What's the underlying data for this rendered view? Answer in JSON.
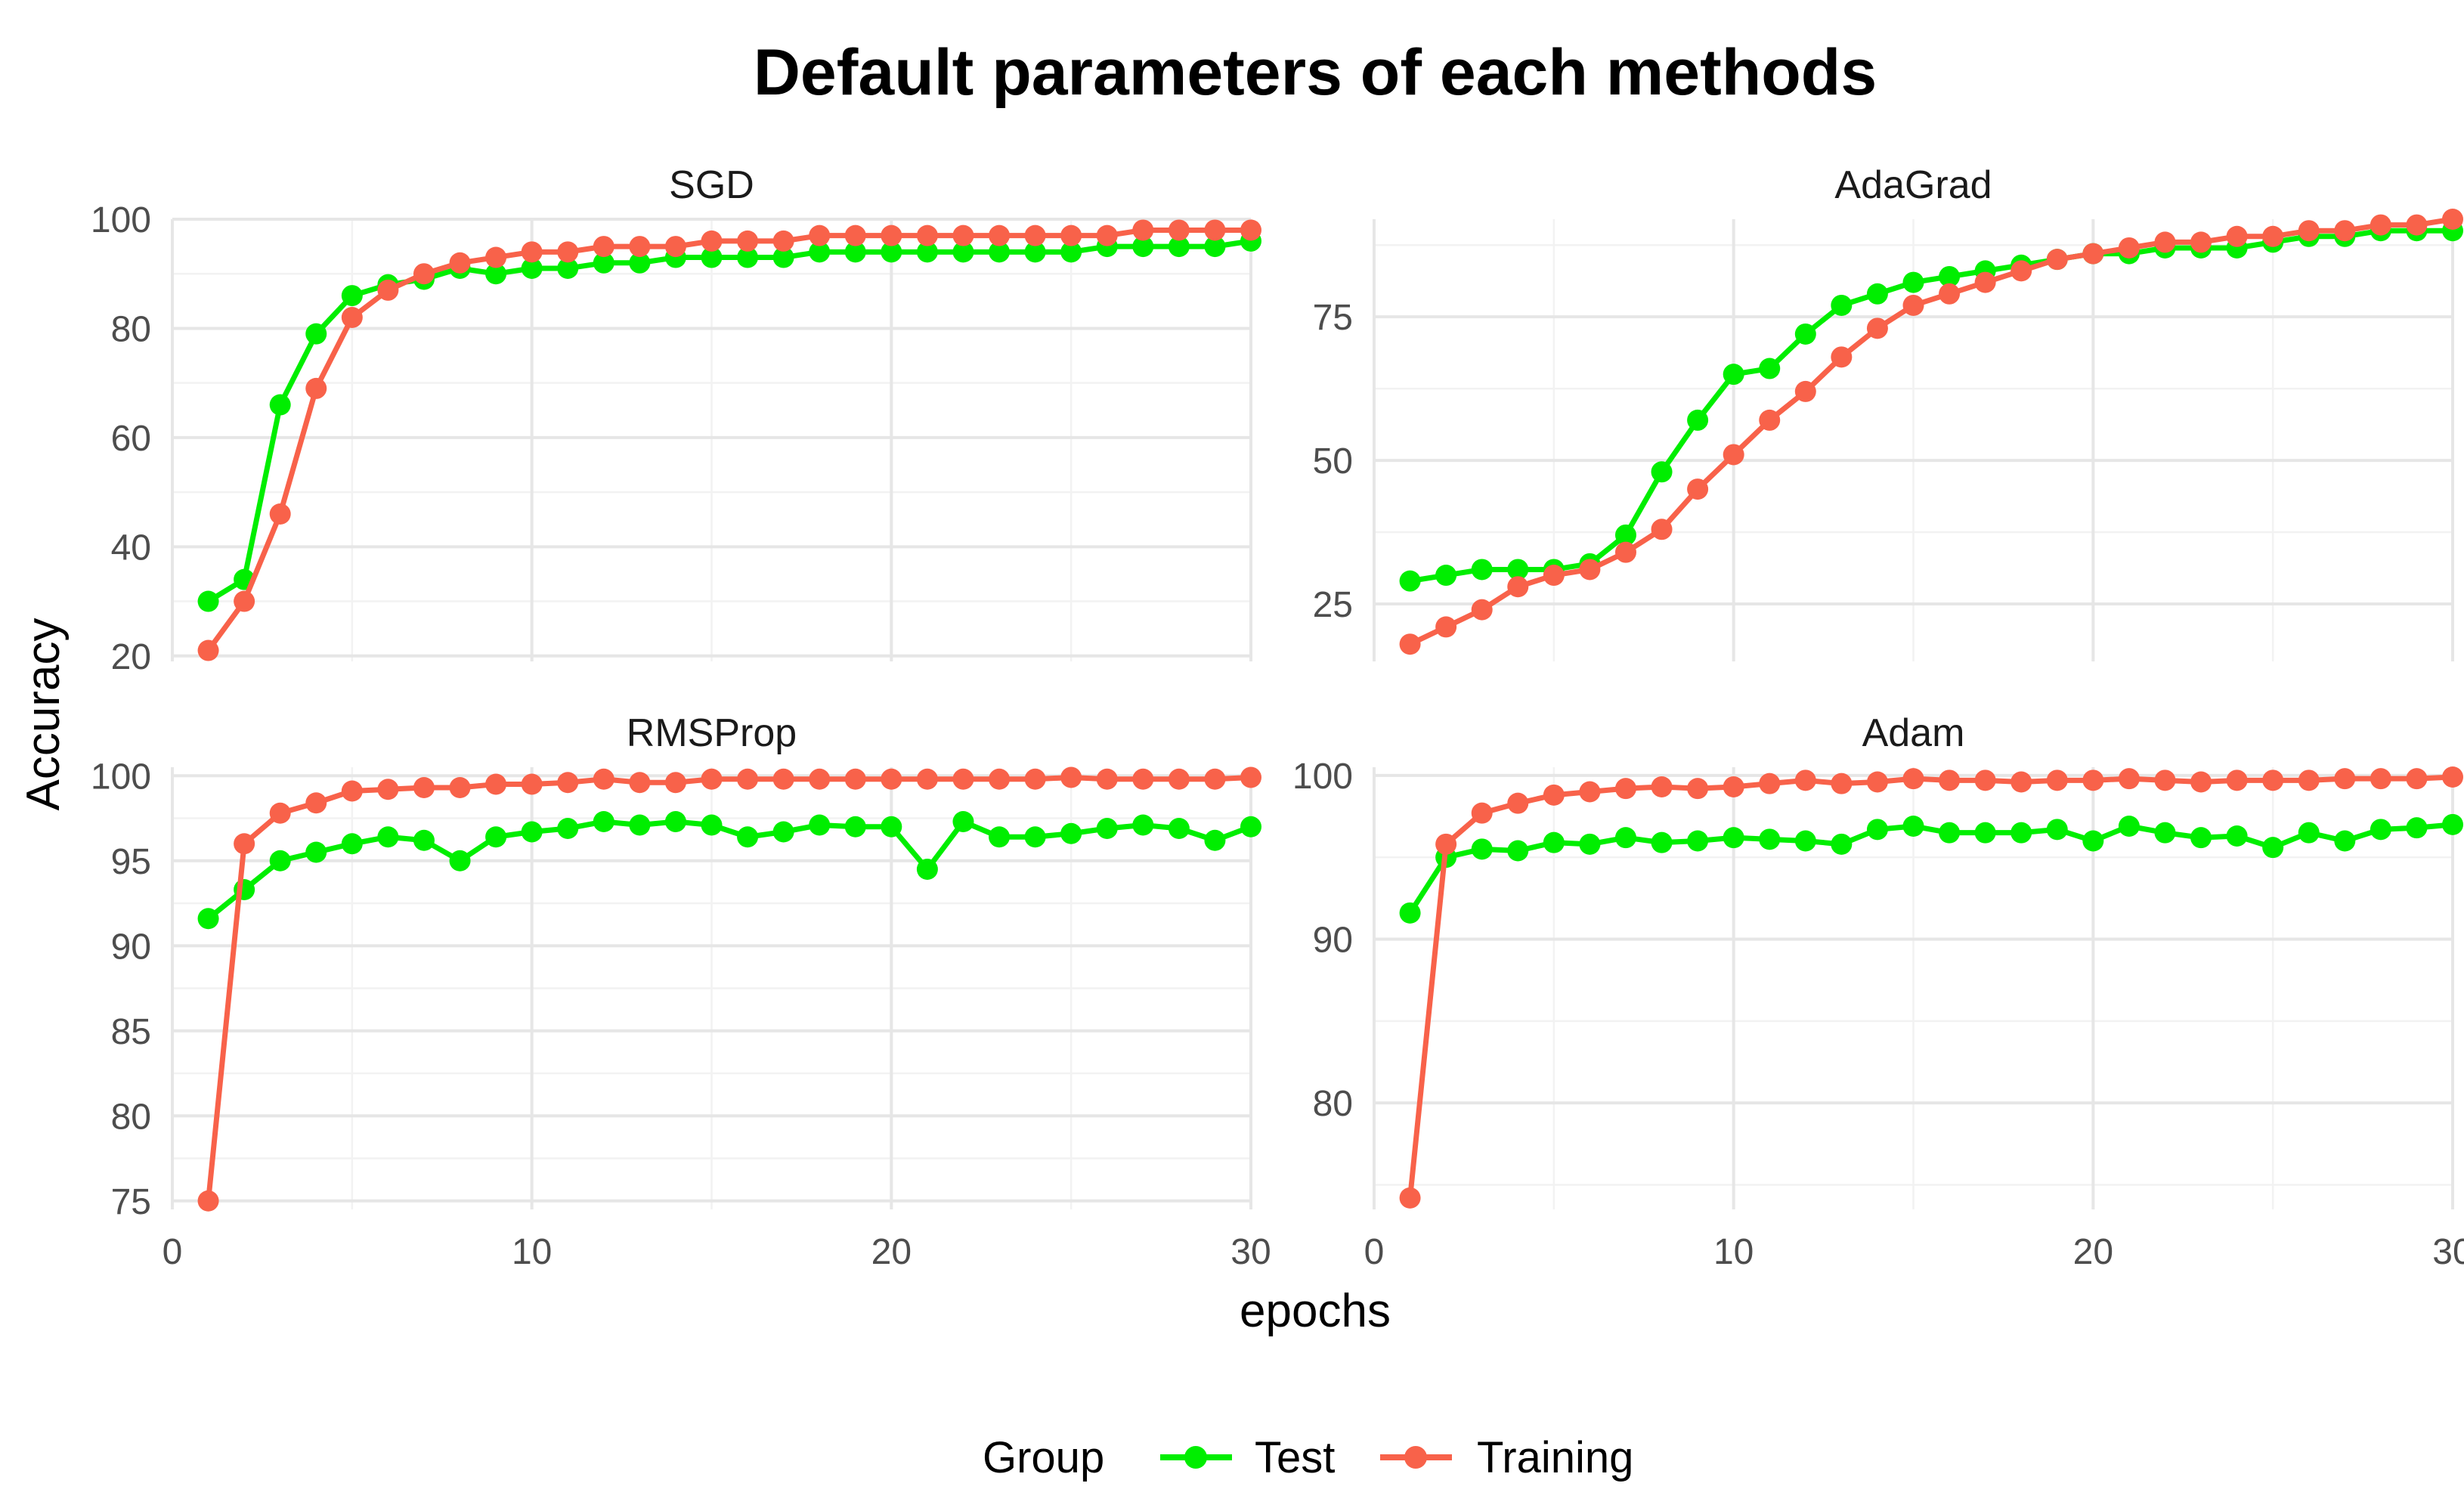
{
  "chart_data": {
    "type": "line",
    "title": "Default parameters of each methods",
    "xlabel": "epochs",
    "ylabel": "Accuracy",
    "legend": {
      "title": "Group",
      "position": "bottom"
    },
    "colors": {
      "Test": "#00ee00",
      "Training": "#f8624a"
    },
    "x": [
      1,
      2,
      3,
      4,
      5,
      6,
      7,
      8,
      9,
      10,
      11,
      12,
      13,
      14,
      15,
      16,
      17,
      18,
      19,
      20,
      21,
      22,
      23,
      24,
      25,
      26,
      27,
      28,
      29,
      30
    ],
    "xlim": [
      0,
      30
    ],
    "xticks": [
      0,
      10,
      20,
      30
    ],
    "grid": true,
    "panels": [
      {
        "label": "SGD",
        "ylim": [
          19,
          100
        ],
        "yticks": [
          20,
          40,
          60,
          80,
          100
        ],
        "series": [
          {
            "name": "Test",
            "values": [
              30,
              34,
              66,
              79,
              86,
              88,
              89,
              91,
              90,
              91,
              91,
              92,
              92,
              93,
              93,
              93,
              93,
              94,
              94,
              94,
              94,
              94,
              94,
              94,
              94,
              95,
              95,
              95,
              95,
              96
            ]
          },
          {
            "name": "Training",
            "values": [
              21,
              30,
              46,
              69,
              82,
              87,
              90,
              92,
              93,
              94,
              94,
              95,
              95,
              95,
              96,
              96,
              96,
              97,
              97,
              97,
              97,
              97,
              97,
              97,
              97,
              97,
              98,
              98,
              98,
              98
            ]
          }
        ]
      },
      {
        "label": "AdaGrad",
        "ylim": [
          15,
          92
        ],
        "yticks": [
          25,
          50,
          75
        ],
        "series": [
          {
            "name": "Test",
            "values": [
              29,
              30,
              31,
              31,
              31,
              32,
              37,
              48,
              57,
              65,
              66,
              72,
              77,
              79,
              81,
              82,
              83,
              84,
              85,
              86,
              86,
              87,
              87,
              87,
              88,
              89,
              89,
              90,
              90,
              90
            ]
          },
          {
            "name": "Training",
            "values": [
              18,
              21,
              24,
              28,
              30,
              31,
              34,
              38,
              45,
              51,
              57,
              62,
              68,
              73,
              77,
              79,
              81,
              83,
              85,
              86,
              87,
              88,
              88,
              89,
              89,
              90,
              90,
              91,
              91,
              92
            ]
          }
        ]
      },
      {
        "label": "RMSProp",
        "ylim": [
          74.5,
          100.5
        ],
        "yticks": [
          75,
          80,
          85,
          90,
          95,
          100
        ],
        "series": [
          {
            "name": "Test",
            "values": [
              91.6,
              93.3,
              95.0,
              95.5,
              96.0,
              96.4,
              96.2,
              95.0,
              96.4,
              96.7,
              96.9,
              97.3,
              97.1,
              97.3,
              97.1,
              96.4,
              96.7,
              97.1,
              97.0,
              97.0,
              94.5,
              97.3,
              96.4,
              96.4,
              96.6,
              96.9,
              97.1,
              96.9,
              96.2,
              97.0
            ]
          },
          {
            "name": "Training",
            "values": [
              75.0,
              96.0,
              97.8,
              98.4,
              99.1,
              99.2,
              99.3,
              99.3,
              99.5,
              99.5,
              99.6,
              99.8,
              99.6,
              99.6,
              99.8,
              99.8,
              99.8,
              99.8,
              99.8,
              99.8,
              99.8,
              99.8,
              99.8,
              99.8,
              99.9,
              99.8,
              99.8,
              99.8,
              99.8,
              99.9
            ]
          }
        ]
      },
      {
        "label": "Adam",
        "ylim": [
          73.5,
          100.5
        ],
        "yticks": [
          80,
          90,
          100
        ],
        "series": [
          {
            "name": "Test",
            "values": [
              91.6,
              95.0,
              95.5,
              95.4,
              95.9,
              95.8,
              96.2,
              95.9,
              96.0,
              96.2,
              96.1,
              96.0,
              95.8,
              96.7,
              96.9,
              96.5,
              96.5,
              96.5,
              96.7,
              96.0,
              96.9,
              96.5,
              96.2,
              96.3,
              95.6,
              96.5,
              96.0,
              96.7,
              96.8,
              97.0
            ]
          },
          {
            "name": "Training",
            "values": [
              74.2,
              95.8,
              97.7,
              98.3,
              98.8,
              99.0,
              99.2,
              99.3,
              99.2,
              99.3,
              99.5,
              99.7,
              99.5,
              99.6,
              99.8,
              99.7,
              99.7,
              99.6,
              99.7,
              99.7,
              99.8,
              99.7,
              99.6,
              99.7,
              99.7,
              99.7,
              99.8,
              99.8,
              99.8,
              99.9
            ]
          }
        ]
      }
    ]
  }
}
